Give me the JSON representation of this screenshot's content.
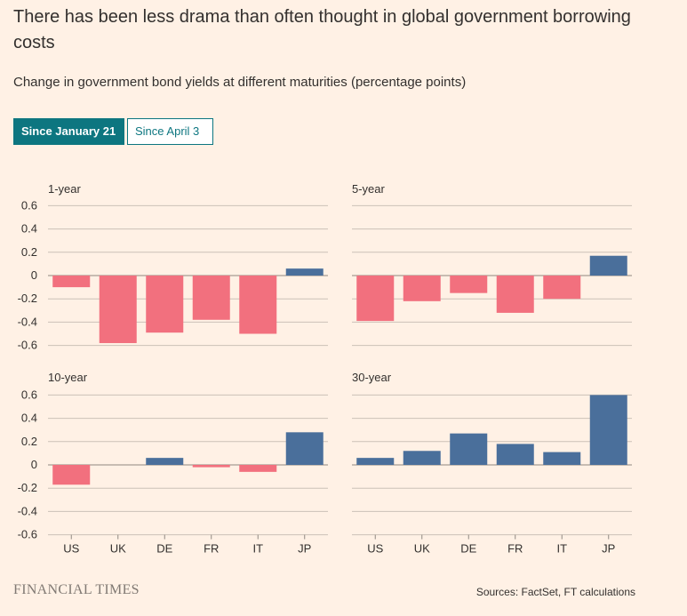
{
  "header": {
    "title": "There has been less drama than often thought in global government borrowing costs",
    "subtitle": "Change in government bond yields at different maturities (percentage points)"
  },
  "toggles": [
    {
      "label": "Since January 21",
      "selected": true
    },
    {
      "label": "Since April 3",
      "selected": false
    }
  ],
  "colors": {
    "negative": "#F2707E",
    "positive": "#4A6F9B",
    "gridline": "#CCC1B7",
    "zeroline": "#8F8880",
    "background": "#FFF1E5",
    "toggle_accent": "#0D7680"
  },
  "chart_data": [
    {
      "type": "bar",
      "title": "1-year",
      "categories": [
        "US",
        "UK",
        "DE",
        "FR",
        "IT",
        "JP"
      ],
      "values": [
        -0.1,
        -0.58,
        -0.49,
        -0.38,
        -0.5,
        0.06
      ],
      "ylim": [
        -0.6,
        0.6
      ],
      "yticks": [
        "0.6",
        "0.4",
        "0.2",
        "0",
        "-0.2",
        "-0.4",
        "-0.6"
      ],
      "grid": true
    },
    {
      "type": "bar",
      "title": "5-year",
      "categories": [
        "US",
        "UK",
        "DE",
        "FR",
        "IT",
        "JP"
      ],
      "values": [
        -0.39,
        -0.22,
        -0.15,
        -0.32,
        -0.2,
        0.17
      ],
      "ylim": [
        -0.6,
        0.6
      ],
      "grid": true
    },
    {
      "type": "bar",
      "title": "10-year",
      "categories": [
        "US",
        "UK",
        "DE",
        "FR",
        "IT",
        "JP"
      ],
      "values": [
        -0.17,
        0.0,
        0.06,
        -0.02,
        -0.06,
        0.28
      ],
      "ylim": [
        -0.6,
        0.6
      ],
      "yticks": [
        "0.6",
        "0.4",
        "0.2",
        "0",
        "-0.2",
        "-0.4",
        "-0.6"
      ],
      "grid": true
    },
    {
      "type": "bar",
      "title": "30-year",
      "categories": [
        "US",
        "UK",
        "DE",
        "FR",
        "IT",
        "JP"
      ],
      "values": [
        0.06,
        0.12,
        0.27,
        0.18,
        0.11,
        0.6
      ],
      "ylim": [
        -0.6,
        0.6
      ],
      "grid": true
    }
  ],
  "footer": {
    "logo": "FINANCIAL TIMES",
    "source": "Sources: FactSet, FT calculations"
  }
}
